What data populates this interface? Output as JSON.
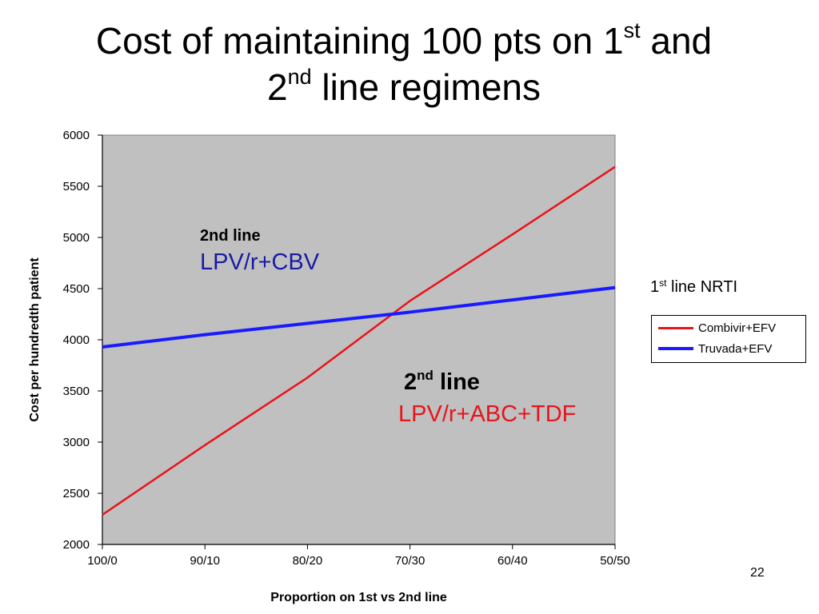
{
  "title": {
    "part1": "Cost of maintaining 100 pts on 1",
    "sup1": "st",
    "part2": " and",
    "part3": "2",
    "sup2": "nd",
    "part4": " line regimens"
  },
  "legend_title": {
    "prefix": "1",
    "sup": "st",
    "suffix": " line NRTI"
  },
  "annotations": {
    "a1_heading": "2nd line",
    "a1_regimen": "LPV/r+CBV",
    "a2_heading_prefix": "2",
    "a2_heading_sup": "nd",
    "a2_heading_suffix": " line",
    "a2_regimen": "LPV/r+ABC+TDF"
  },
  "page_number": "22",
  "colors": {
    "plot_bg": "#c0c0c0",
    "combivir": "#e8141b",
    "truvada": "#1a1aff",
    "annotation_blue": "#1a1aa6",
    "annotation_red": "#e8141b"
  },
  "chart_data": {
    "type": "line",
    "title": "",
    "xlabel": "Proportion on 1st vs 2nd line",
    "ylabel": "Cost per hundredth patient",
    "categories": [
      "100/0",
      "90/10",
      "80/20",
      "70/30",
      "60/40",
      "50/50"
    ],
    "yticks": [
      2000,
      2500,
      3000,
      3500,
      4000,
      4500,
      5000,
      5500,
      6000
    ],
    "ylim": [
      2000,
      6000
    ],
    "grid": false,
    "legend_position": "right",
    "series": [
      {
        "name": "Combivir+EFV",
        "values": [
          2290,
          2970,
          3630,
          4380,
          5030,
          5690
        ]
      },
      {
        "name": "Truvada+EFV",
        "values": [
          3930,
          4050,
          4160,
          4270,
          4390,
          4510
        ]
      }
    ]
  }
}
